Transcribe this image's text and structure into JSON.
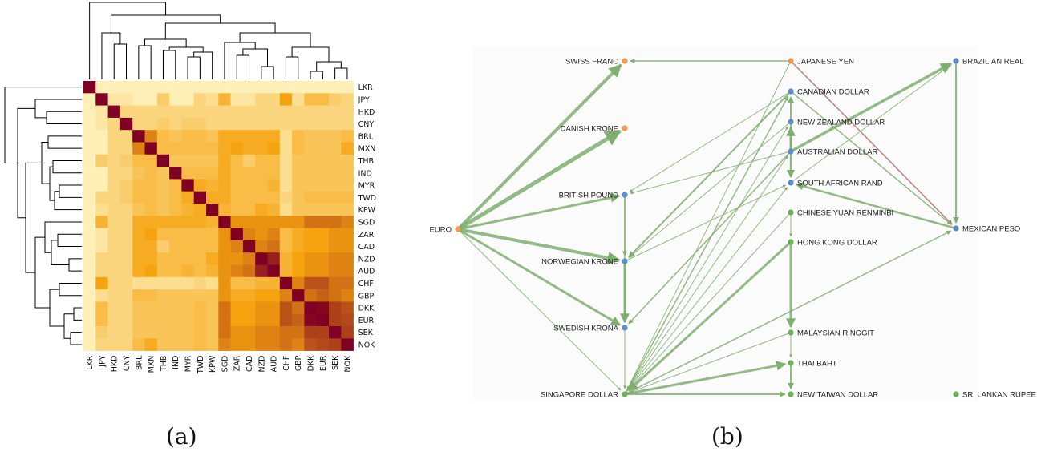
{
  "captions": {
    "a": "(a)",
    "b": "(b)"
  },
  "colors": {
    "heat_low": "#fff7c8",
    "heat_mid": "#f5a30f",
    "heat_high": "#7f0022",
    "edge_positive": "#7fae6f",
    "edge_negative": "#b46a6a",
    "node_orange": "#ef9b52",
    "node_blue": "#5b8cc7",
    "node_green": "#6aaf52"
  },
  "chart_data": [
    {
      "type": "heatmap",
      "title": "",
      "currencies": [
        "LKR",
        "JPY",
        "HKD",
        "CNY",
        "BRL",
        "MXN",
        "THB",
        "IND",
        "MYR",
        "TWD",
        "KPW",
        "SGD",
        "ZAR",
        "CAD",
        "NZD",
        "AUD",
        "CHF",
        "GBP",
        "DKK",
        "EUR",
        "SEK",
        "NOK"
      ],
      "matrix": [
        [
          1.0,
          0.05,
          0.05,
          0.05,
          0.05,
          0.05,
          0.05,
          0.05,
          0.05,
          0.05,
          0.05,
          0.05,
          0.05,
          0.05,
          0.05,
          0.05,
          0.05,
          0.05,
          0.05,
          0.05,
          0.05,
          0.05
        ],
        [
          0.05,
          1.0,
          0.1,
          0.1,
          0.05,
          0.05,
          0.25,
          0.05,
          0.05,
          0.2,
          0.15,
          0.4,
          0.1,
          0.1,
          0.2,
          0.2,
          0.5,
          0.15,
          0.35,
          0.35,
          0.25,
          0.2
        ],
        [
          0.05,
          0.1,
          1.0,
          0.2,
          0.2,
          0.2,
          0.2,
          0.2,
          0.2,
          0.2,
          0.2,
          0.2,
          0.2,
          0.2,
          0.2,
          0.2,
          0.2,
          0.2,
          0.2,
          0.2,
          0.2,
          0.2
        ],
        [
          0.05,
          0.1,
          0.2,
          1.0,
          0.2,
          0.2,
          0.25,
          0.2,
          0.25,
          0.25,
          0.2,
          0.2,
          0.2,
          0.2,
          0.2,
          0.2,
          0.2,
          0.2,
          0.2,
          0.2,
          0.2,
          0.2
        ],
        [
          0.05,
          0.05,
          0.2,
          0.2,
          1.0,
          0.6,
          0.35,
          0.3,
          0.35,
          0.35,
          0.3,
          0.45,
          0.45,
          0.45,
          0.45,
          0.45,
          0.15,
          0.35,
          0.3,
          0.3,
          0.3,
          0.35
        ],
        [
          0.05,
          0.05,
          0.2,
          0.2,
          0.6,
          1.0,
          0.35,
          0.35,
          0.35,
          0.35,
          0.35,
          0.45,
          0.5,
          0.45,
          0.45,
          0.5,
          0.15,
          0.35,
          0.3,
          0.3,
          0.3,
          0.45
        ],
        [
          0.05,
          0.25,
          0.2,
          0.25,
          0.35,
          0.35,
          1.0,
          0.3,
          0.3,
          0.3,
          0.3,
          0.45,
          0.35,
          0.25,
          0.35,
          0.35,
          0.15,
          0.3,
          0.3,
          0.3,
          0.3,
          0.3
        ],
        [
          0.05,
          0.05,
          0.2,
          0.2,
          0.3,
          0.35,
          0.3,
          1.0,
          0.35,
          0.35,
          0.35,
          0.45,
          0.35,
          0.35,
          0.35,
          0.35,
          0.15,
          0.3,
          0.3,
          0.3,
          0.3,
          0.3
        ],
        [
          0.05,
          0.05,
          0.2,
          0.25,
          0.35,
          0.35,
          0.3,
          0.35,
          1.0,
          0.45,
          0.4,
          0.45,
          0.35,
          0.35,
          0.35,
          0.4,
          0.15,
          0.3,
          0.3,
          0.3,
          0.3,
          0.3
        ],
        [
          0.05,
          0.2,
          0.2,
          0.25,
          0.35,
          0.35,
          0.3,
          0.35,
          0.45,
          1.0,
          0.45,
          0.45,
          0.35,
          0.35,
          0.35,
          0.35,
          0.2,
          0.3,
          0.35,
          0.35,
          0.35,
          0.35
        ],
        [
          0.05,
          0.15,
          0.2,
          0.2,
          0.3,
          0.35,
          0.3,
          0.35,
          0.4,
          0.45,
          1.0,
          0.4,
          0.35,
          0.35,
          0.45,
          0.4,
          0.15,
          0.3,
          0.3,
          0.3,
          0.3,
          0.3
        ],
        [
          0.05,
          0.4,
          0.2,
          0.2,
          0.45,
          0.45,
          0.45,
          0.45,
          0.45,
          0.45,
          0.4,
          1.0,
          0.55,
          0.55,
          0.55,
          0.55,
          0.55,
          0.55,
          0.65,
          0.65,
          0.65,
          0.6
        ],
        [
          0.05,
          0.1,
          0.2,
          0.2,
          0.45,
          0.5,
          0.35,
          0.35,
          0.35,
          0.35,
          0.35,
          0.55,
          1.0,
          0.6,
          0.55,
          0.6,
          0.35,
          0.45,
          0.5,
          0.5,
          0.55,
          0.55
        ],
        [
          0.05,
          0.1,
          0.2,
          0.2,
          0.45,
          0.45,
          0.25,
          0.35,
          0.35,
          0.35,
          0.35,
          0.55,
          0.6,
          1.0,
          0.6,
          0.65,
          0.35,
          0.45,
          0.5,
          0.5,
          0.55,
          0.55
        ],
        [
          0.05,
          0.2,
          0.2,
          0.2,
          0.45,
          0.45,
          0.35,
          0.35,
          0.35,
          0.35,
          0.45,
          0.55,
          0.55,
          0.6,
          1.0,
          0.9,
          0.4,
          0.5,
          0.55,
          0.55,
          0.6,
          0.6
        ],
        [
          0.05,
          0.2,
          0.2,
          0.2,
          0.45,
          0.5,
          0.35,
          0.35,
          0.4,
          0.35,
          0.4,
          0.55,
          0.6,
          0.65,
          0.9,
          1.0,
          0.4,
          0.5,
          0.55,
          0.55,
          0.6,
          0.6
        ],
        [
          0.05,
          0.5,
          0.2,
          0.2,
          0.15,
          0.15,
          0.15,
          0.15,
          0.15,
          0.2,
          0.15,
          0.55,
          0.35,
          0.35,
          0.4,
          0.4,
          1.0,
          0.6,
          0.75,
          0.75,
          0.65,
          0.65
        ],
        [
          0.05,
          0.15,
          0.2,
          0.2,
          0.35,
          0.35,
          0.3,
          0.3,
          0.3,
          0.3,
          0.3,
          0.55,
          0.45,
          0.45,
          0.5,
          0.5,
          0.6,
          1.0,
          0.65,
          0.7,
          0.65,
          0.6
        ],
        [
          0.05,
          0.35,
          0.2,
          0.2,
          0.3,
          0.3,
          0.3,
          0.3,
          0.3,
          0.35,
          0.3,
          0.65,
          0.5,
          0.5,
          0.55,
          0.55,
          0.75,
          0.65,
          1.0,
          0.98,
          0.8,
          0.75
        ],
        [
          0.05,
          0.35,
          0.2,
          0.2,
          0.3,
          0.3,
          0.3,
          0.3,
          0.3,
          0.35,
          0.3,
          0.65,
          0.5,
          0.5,
          0.55,
          0.55,
          0.75,
          0.7,
          0.98,
          1.0,
          0.8,
          0.78
        ],
        [
          0.05,
          0.25,
          0.2,
          0.2,
          0.3,
          0.3,
          0.3,
          0.3,
          0.3,
          0.35,
          0.3,
          0.65,
          0.55,
          0.55,
          0.6,
          0.6,
          0.65,
          0.65,
          0.8,
          0.8,
          1.0,
          0.8
        ],
        [
          0.05,
          0.2,
          0.2,
          0.2,
          0.35,
          0.45,
          0.3,
          0.3,
          0.3,
          0.35,
          0.3,
          0.6,
          0.55,
          0.55,
          0.6,
          0.6,
          0.65,
          0.6,
          0.75,
          0.78,
          0.8,
          1.0
        ]
      ]
    },
    {
      "type": "network",
      "title": "",
      "nodes": [
        {
          "id": "EURO",
          "label": "EURO",
          "group": "orange"
        },
        {
          "id": "SWISS_FRANC",
          "label": "SWISS FRANC",
          "group": "orange"
        },
        {
          "id": "DANISH_KRONE",
          "label": "DANISH KRONE",
          "group": "orange"
        },
        {
          "id": "JAPANESE_YEN",
          "label": "JAPANESE YEN",
          "group": "orange"
        },
        {
          "id": "BRITISH_POUND",
          "label": "BRITISH POUND",
          "group": "blue"
        },
        {
          "id": "NORWEGIAN_KRONE",
          "label": "NORWEGIAN KRONE",
          "group": "blue"
        },
        {
          "id": "SWEDISH_KRONA",
          "label": "SWEDISH KRONA",
          "group": "blue"
        },
        {
          "id": "CANADIAN_DOLLAR",
          "label": "CANADIAN DOLLAR",
          "group": "blue"
        },
        {
          "id": "NEW_ZEALAND_DOLLAR",
          "label": "NEW ZEALAND DOLLAR",
          "group": "blue"
        },
        {
          "id": "AUSTRALIAN_DOLLAR",
          "label": "AUSTRALIAN DOLLAR",
          "group": "blue"
        },
        {
          "id": "SOUTH_AFRICAN_RAND",
          "label": "SOUTH AFRICAN RAND",
          "group": "blue"
        },
        {
          "id": "BRAZILIAN_REAL",
          "label": "BRAZILIAN REAL",
          "group": "blue"
        },
        {
          "id": "MEXICAN_PESO",
          "label": "MEXICAN PESO",
          "group": "blue"
        },
        {
          "id": "SINGAPORE_DOLLAR",
          "label": "SINGAPORE DOLLAR",
          "group": "green"
        },
        {
          "id": "CHINESE_YUAN",
          "label": "CHINESE YUAN RENMINBI",
          "group": "green"
        },
        {
          "id": "HONG_KONG_DOLLAR",
          "label": "HONG KONG DOLLAR",
          "group": "green"
        },
        {
          "id": "MALAYSIAN_RINGGIT",
          "label": "MALAYSIAN RINGGIT",
          "group": "green"
        },
        {
          "id": "THAI_BAHT",
          "label": "THAI BAHT",
          "group": "green"
        },
        {
          "id": "NEW_TAIWAN_DOLLAR",
          "label": "NEW TAIWAN DOLLAR",
          "group": "green"
        },
        {
          "id": "SRI_LANKAN_RUPEE",
          "label": "SRI LANKAN RUPEE",
          "group": "green"
        }
      ],
      "edges": [
        {
          "source": "EURO",
          "target": "SWISS_FRANC",
          "weight": 4,
          "sign": "positive"
        },
        {
          "source": "EURO",
          "target": "DANISH_KRONE",
          "weight": 5,
          "sign": "positive"
        },
        {
          "source": "EURO",
          "target": "BRITISH_POUND",
          "weight": 3,
          "sign": "positive"
        },
        {
          "source": "EURO",
          "target": "NORWEGIAN_KRONE",
          "weight": 4,
          "sign": "positive"
        },
        {
          "source": "EURO",
          "target": "SWEDISH_KRONA",
          "weight": 3,
          "sign": "positive"
        },
        {
          "source": "EURO",
          "target": "SINGAPORE_DOLLAR",
          "weight": 1,
          "sign": "positive"
        },
        {
          "source": "JAPANESE_YEN",
          "target": "SWISS_FRANC",
          "weight": 1.5,
          "sign": "positive"
        },
        {
          "source": "JAPANESE_YEN",
          "target": "MEXICAN_PESO",
          "weight": 1.5,
          "sign": "negative"
        },
        {
          "source": "JAPANESE_YEN",
          "target": "SINGAPORE_DOLLAR",
          "weight": 1,
          "sign": "positive"
        },
        {
          "source": "AUSTRALIAN_DOLLAR",
          "target": "BRAZILIAN_REAL",
          "weight": 3.5,
          "sign": "positive"
        },
        {
          "source": "SOUTH_AFRICAN_RAND",
          "target": "BRAZILIAN_REAL",
          "weight": 1,
          "sign": "positive"
        },
        {
          "source": "BRAZILIAN_REAL",
          "target": "MEXICAN_PESO",
          "weight": 2,
          "sign": "positive"
        },
        {
          "source": "MEXICAN_PESO",
          "target": "SOUTH_AFRICAN_RAND",
          "weight": 2.5,
          "sign": "positive"
        },
        {
          "source": "CANADIAN_DOLLAR",
          "target": "MEXICAN_PESO",
          "weight": 1.5,
          "sign": "positive"
        },
        {
          "source": "AUSTRALIAN_DOLLAR",
          "target": "CANADIAN_DOLLAR",
          "weight": 2,
          "sign": "positive"
        },
        {
          "source": "AUSTRALIAN_DOLLAR",
          "target": "NEW_ZEALAND_DOLLAR",
          "weight": 3,
          "sign": "positive"
        },
        {
          "source": "AUSTRALIAN_DOLLAR",
          "target": "SOUTH_AFRICAN_RAND",
          "weight": 2.5,
          "sign": "positive"
        },
        {
          "source": "CANADIAN_DOLLAR",
          "target": "BRITISH_POUND",
          "weight": 1,
          "sign": "positive"
        },
        {
          "source": "AUSTRALIAN_DOLLAR",
          "target": "BRITISH_POUND",
          "weight": 1,
          "sign": "positive"
        },
        {
          "source": "CANADIAN_DOLLAR",
          "target": "NORWEGIAN_KRONE",
          "weight": 2,
          "sign": "positive"
        },
        {
          "source": "NEW_ZEALAND_DOLLAR",
          "target": "NORWEGIAN_KRONE",
          "weight": 1,
          "sign": "positive"
        },
        {
          "source": "NORWEGIAN_KRONE",
          "target": "SOUTH_AFRICAN_RAND",
          "weight": 1,
          "sign": "positive"
        },
        {
          "source": "BRITISH_POUND",
          "target": "NORWEGIAN_KRONE",
          "weight": 1.5,
          "sign": "positive"
        },
        {
          "source": "NORWEGIAN_KRONE",
          "target": "SWEDISH_KRONA",
          "weight": 3,
          "sign": "positive"
        },
        {
          "source": "BRITISH_POUND",
          "target": "SWEDISH_KRONA",
          "weight": 1.5,
          "sign": "positive"
        },
        {
          "source": "SWEDISH_KRONA",
          "target": "SINGAPORE_DOLLAR",
          "weight": 1,
          "sign": "positive"
        },
        {
          "source": "AUSTRALIAN_DOLLAR",
          "target": "SWEDISH_KRONA",
          "weight": 1.5,
          "sign": "positive"
        },
        {
          "source": "SINGAPORE_DOLLAR",
          "target": "CANADIAN_DOLLAR",
          "weight": 1.5,
          "sign": "positive"
        },
        {
          "source": "SINGAPORE_DOLLAR",
          "target": "NEW_ZEALAND_DOLLAR",
          "weight": 1,
          "sign": "positive"
        },
        {
          "source": "SINGAPORE_DOLLAR",
          "target": "AUSTRALIAN_DOLLAR",
          "weight": 1,
          "sign": "positive"
        },
        {
          "source": "SINGAPORE_DOLLAR",
          "target": "SOUTH_AFRICAN_RAND",
          "weight": 1,
          "sign": "positive"
        },
        {
          "source": "CHINESE_YUAN",
          "target": "SINGAPORE_DOLLAR",
          "weight": 1,
          "sign": "positive"
        },
        {
          "source": "HONG_KONG_DOLLAR",
          "target": "SINGAPORE_DOLLAR",
          "weight": 3,
          "sign": "positive"
        },
        {
          "source": "MALAYSIAN_RINGGIT",
          "target": "SINGAPORE_DOLLAR",
          "weight": 1,
          "sign": "positive"
        },
        {
          "source": "SINGAPORE_DOLLAR",
          "target": "THAI_BAHT",
          "weight": 3,
          "sign": "positive"
        },
        {
          "source": "SINGAPORE_DOLLAR",
          "target": "NEW_TAIWAN_DOLLAR",
          "weight": 2,
          "sign": "positive"
        },
        {
          "source": "SINGAPORE_DOLLAR",
          "target": "MEXICAN_PESO",
          "weight": 1.5,
          "sign": "positive"
        },
        {
          "source": "HONG_KONG_DOLLAR",
          "target": "MALAYSIAN_RINGGIT",
          "weight": 3,
          "sign": "positive"
        },
        {
          "source": "MALAYSIAN_RINGGIT",
          "target": "THAI_BAHT",
          "weight": 1,
          "sign": "positive"
        },
        {
          "source": "THAI_BAHT",
          "target": "NEW_TAIWAN_DOLLAR",
          "weight": 2,
          "sign": "positive"
        },
        {
          "source": "CHINESE_YUAN",
          "target": "HONG_KONG_DOLLAR",
          "weight": 1,
          "sign": "positive"
        }
      ]
    }
  ]
}
